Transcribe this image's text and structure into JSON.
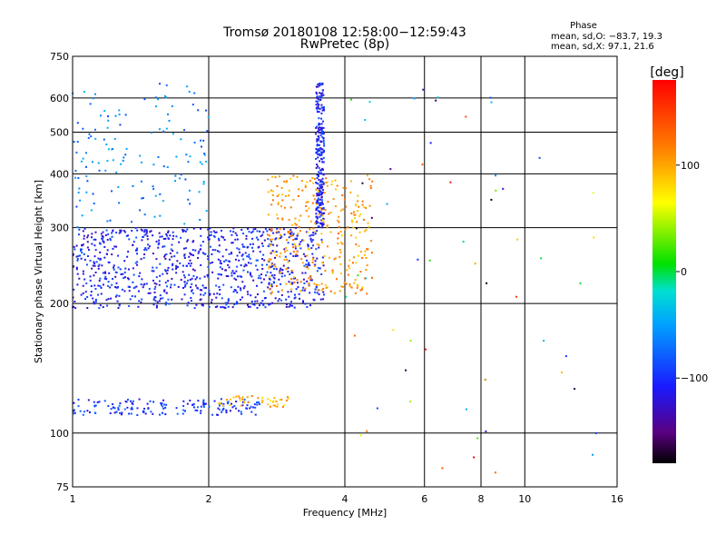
{
  "chart_data": {
    "type": "scatter",
    "title": "Tromsø 20180108 12:58:00−12:59:43",
    "subtitle": "RwPretec (8p)",
    "xlabel": "Frequency [MHz]",
    "ylabel": "Stationary phase Virtual Height [km]",
    "x_scale": "log",
    "y_scale": "log",
    "xlim": [
      1,
      16
    ],
    "ylim": [
      75,
      750
    ],
    "x_ticks": [
      1,
      2,
      4,
      6,
      8,
      10,
      16
    ],
    "x_ticklabels": [
      "1",
      "2",
      "4",
      "6",
      "8",
      "10",
      "16"
    ],
    "x_gridlines": [
      2,
      4,
      6,
      8,
      10
    ],
    "y_ticks": [
      75,
      100,
      200,
      300,
      400,
      500,
      600,
      750
    ],
    "y_ticklabels": [
      "75",
      "100",
      "200",
      "300",
      "400",
      "500",
      "600",
      "750"
    ],
    "y_gridlines": [
      100,
      200,
      300,
      400,
      500,
      600
    ],
    "grid": true,
    "phase_stats": {
      "title": "Phase",
      "line_O": "mean, sd,O: −83.7, 19.3",
      "line_X": "mean, sd,X:  97.1, 21.6"
    },
    "colorbar": {
      "label": "[deg]",
      "range": [
        -180,
        180
      ],
      "ticks": [
        100,
        0,
        -100
      ],
      "ticklabels": [
        "100",
        "0",
        "−100"
      ],
      "colormap": "rainbow (black at −180, purple, blue, cyan, green, yellow, orange, red at +180)"
    },
    "point_groups": [
      {
        "x_range": [
          1.0,
          2.6
        ],
        "height_range": [
          110,
          120
        ],
        "phase": -100,
        "description": "E layer trace"
      },
      {
        "x_range": [
          2.1,
          3.0
        ],
        "height_range": [
          115,
          122
        ],
        "phase": 90,
        "description": "E layer X trace"
      },
      {
        "x_range": [
          1.0,
          3.6
        ],
        "height_range": [
          195,
          300
        ],
        "phase": -110,
        "description": "F1/F2 O trace"
      },
      {
        "x_range": [
          3.45,
          3.6
        ],
        "height_range": [
          300,
          650
        ],
        "phase": -110,
        "description": "O cusp foF2"
      },
      {
        "x_range": [
          2.7,
          4.6
        ],
        "height_range": [
          210,
          400
        ],
        "phase": 100,
        "description": "X trace fxF2"
      },
      {
        "x_range": [
          1.0,
          2.0
        ],
        "height_range": [
          300,
          650
        ],
        "phase": -70,
        "description": "spread echoes"
      },
      {
        "x_range": [
          4.0,
          14.5
        ],
        "height_range": [
          80,
          650
        ],
        "phase": 0,
        "description": "scattered interference"
      }
    ]
  }
}
